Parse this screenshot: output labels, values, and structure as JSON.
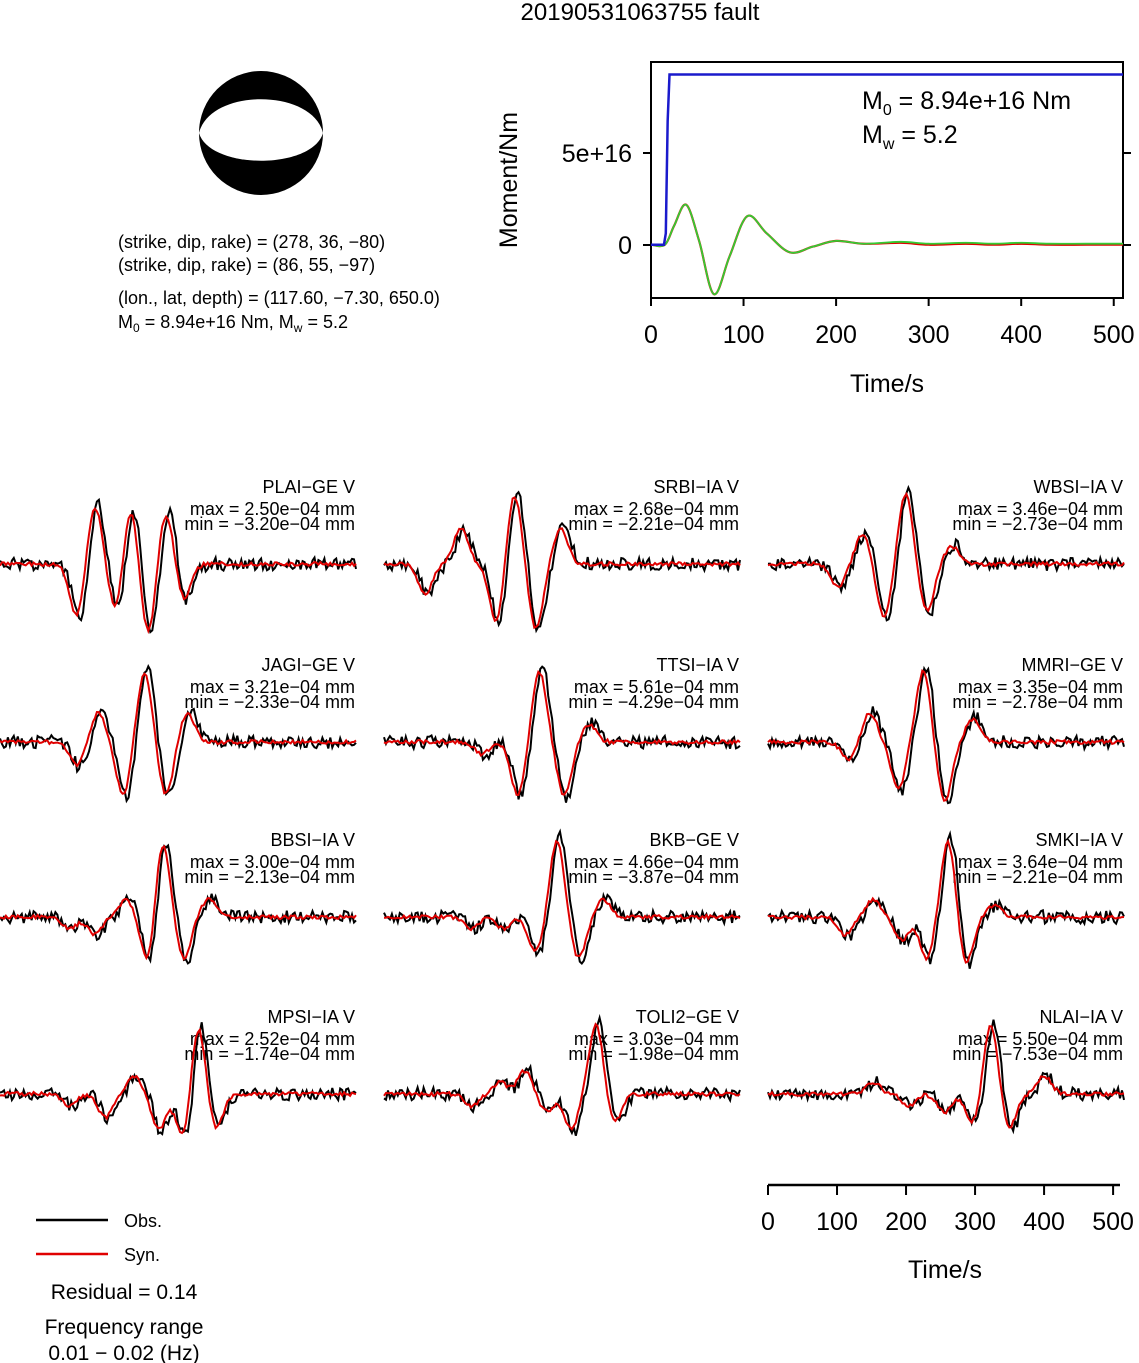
{
  "title": "20190531063755 fault",
  "info": {
    "line1": "(strike, dip, rake) = (278, 36, −80)",
    "line2": "(strike, dip, rake) = (86, 55, −97)",
    "line3": "(lon., lat, depth) = (117.60, −7.30, 650.0)",
    "m0_prefix": "M",
    "m0_sub": "0",
    "m0_rest": " = 8.94e+16 Nm, M",
    "mw_sub": "w",
    "mw_rest": " = 5.2"
  },
  "moment_chart": {
    "ylabel": "Moment/Nm",
    "xlabel": "Time/s",
    "yticks": [
      "0",
      "5e+16"
    ],
    "xticks": [
      "0",
      "100",
      "200",
      "300",
      "400",
      "500"
    ],
    "annot_m0_prefix": "M",
    "annot_m0_sub": "0",
    "annot_m0_rest": " = 8.94e+16 Nm",
    "annot_mw_prefix": "M",
    "annot_mw_sub": "w",
    "annot_mw_rest": " = 5.2"
  },
  "wave_axis": {
    "xlabel": "Time/s",
    "xticks": [
      "0",
      "100",
      "200",
      "300",
      "400",
      "500"
    ]
  },
  "legend": {
    "obs": "Obs.",
    "syn": "Syn."
  },
  "footer": {
    "residual": "Residual = 0.14",
    "freq_label": "Frequency range",
    "freq_value": "0.01 − 0.02 (Hz)"
  },
  "colors": {
    "observed": "#000000",
    "synthetic": "#e00000",
    "moment": "#1a1acc",
    "rate": "#33cc33",
    "rate_red": "#e00000"
  },
  "stations": [
    {
      "name": "PLAI−GE V",
      "max": "max = 2.50e−04 mm",
      "min": "min = −3.20e−04 mm"
    },
    {
      "name": "SRBI−IA V",
      "max": "max = 2.68e−04 mm",
      "min": "min = −2.21e−04 mm"
    },
    {
      "name": "WBSI−IA V",
      "max": "max = 3.46e−04 mm",
      "min": "min = −2.73e−04 mm"
    },
    {
      "name": "JAGI−GE V",
      "max": "max = 3.21e−04 mm",
      "min": "min = −2.33e−04 mm"
    },
    {
      "name": "TTSI−IA V",
      "max": "max = 5.61e−04 mm",
      "min": "min = −4.29e−04 mm"
    },
    {
      "name": "MMRI−GE V",
      "max": "max = 3.35e−04 mm",
      "min": "min = −2.78e−04 mm"
    },
    {
      "name": "BBSI−IA V",
      "max": "max = 3.00e−04 mm",
      "min": "min = −2.13e−04 mm"
    },
    {
      "name": "BKB−GE V",
      "max": "max = 4.66e−04 mm",
      "min": "min = −3.87e−04 mm"
    },
    {
      "name": "SMKI−IA V",
      "max": "max = 3.64e−04 mm",
      "min": "min = −2.21e−04 mm"
    },
    {
      "name": "MPSI−IA V",
      "max": "max = 2.52e−04 mm",
      "min": "min = −1.74e−04 mm"
    },
    {
      "name": "TOLI2−GE V",
      "max": "max = 3.03e−04 mm",
      "min": "min = −1.98e−04 mm"
    },
    {
      "name": "NLAI−IA V",
      "max": "max = 5.50e−04 mm",
      "min": "min = −7.53e−04 mm"
    }
  ],
  "chart_data": [
    {
      "type": "line",
      "ylabel": "Moment/Nm",
      "xlabel": "Time/s",
      "xlim": [
        0,
        510
      ],
      "ylim": [
        -2.8e+16,
        9.6e+16
      ],
      "series": [
        {
          "x": [
            0,
            14,
            16,
            18,
            20,
            510
          ],
          "values": [
            0,
            0,
            6000000000000000.0,
            6.5e+16,
            8.94e+16,
            8.94e+16
          ]
        },
        {
          "x": [
            0,
            15,
            25,
            38,
            52,
            68,
            85,
            104,
            125,
            150,
            175,
            200,
            230,
            270,
            300,
            340,
            370,
            400,
            430,
            470,
            510
          ],
          "values": [
            0,
            0,
            1e+16,
            2.1e+16,
            2000000000000000.0,
            -2.6e+16,
            -6000000000000000.0,
            1.5e+16,
            6000000000000000.0,
            -4000000000000000.0,
            -1000000000000000.0,
            2000000000000000.0,
            500000000000000.0,
            1000000000000000.0,
            0.0,
            500000000000000.0,
            0.0,
            500000000000000.0,
            0.0,
            0.0,
            0.0
          ]
        }
      ]
    },
    {
      "type": "line",
      "xlabel": "Time/s",
      "xlim": [
        0,
        510
      ],
      "series": [
        {
          "name": "Obs."
        },
        {
          "name": "Syn."
        }
      ]
    }
  ]
}
